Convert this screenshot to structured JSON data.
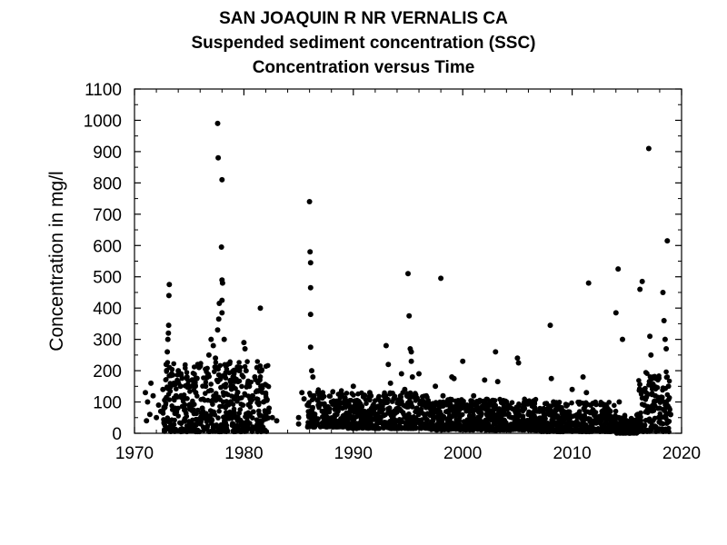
{
  "chart_data": {
    "type": "scatter",
    "title": "SAN JOAQUIN R NR VERNALIS CA",
    "subtitle": "Suspended sediment concentration (SSC)",
    "subtitle2": "Concentration versus Time",
    "xlabel": "",
    "ylabel": "Concentration in mg/l",
    "xlim": [
      1970,
      2020
    ],
    "ylim": [
      0,
      1100
    ],
    "xticks": [
      1970,
      1980,
      1990,
      2000,
      2010,
      2020
    ],
    "yticks": [
      0,
      100,
      200,
      300,
      400,
      500,
      600,
      700,
      800,
      900,
      1000,
      1100
    ],
    "grid": false,
    "marker_color": "#000000",
    "series": [
      {
        "points": [
          [
            1971.0,
            130
          ],
          [
            1971.1,
            40
          ],
          [
            1971.2,
            100
          ],
          [
            1971.4,
            60
          ],
          [
            1971.5,
            160
          ],
          [
            1971.7,
            120
          ],
          [
            1972.0,
            50
          ],
          [
            1972.2,
            90
          ],
          [
            1972.4,
            70
          ],
          [
            1972.6,
            140
          ],
          [
            1972.9,
            220
          ],
          [
            1973.0,
            260
          ],
          [
            1973.05,
            300
          ],
          [
            1973.1,
            320
          ],
          [
            1973.12,
            345
          ],
          [
            1973.15,
            440
          ],
          [
            1973.18,
            475
          ],
          [
            1973.2,
            210
          ],
          [
            1973.4,
            190
          ],
          [
            1973.6,
            160
          ],
          [
            1973.8,
            120
          ],
          [
            1974.0,
            200
          ],
          [
            1974.2,
            150
          ],
          [
            1974.5,
            110
          ],
          [
            1974.8,
            180
          ],
          [
            1975.0,
            90
          ],
          [
            1975.3,
            170
          ],
          [
            1975.6,
            130
          ],
          [
            1975.9,
            210
          ],
          [
            1976.2,
            80
          ],
          [
            1976.5,
            150
          ],
          [
            1976.8,
            250
          ],
          [
            1977.0,
            300
          ],
          [
            1977.2,
            280
          ],
          [
            1977.4,
            240
          ],
          [
            1977.5,
            210
          ],
          [
            1977.6,
            330
          ],
          [
            1977.7,
            365
          ],
          [
            1977.75,
            415
          ],
          [
            1977.6,
            990
          ],
          [
            1977.65,
            880
          ],
          [
            1978.0,
            810
          ],
          [
            1977.95,
            595
          ],
          [
            1978.0,
            490
          ],
          [
            1978.05,
            480
          ],
          [
            1978.0,
            425
          ],
          [
            1978.0,
            385
          ],
          [
            1978.2,
            300
          ],
          [
            1978.5,
            220
          ],
          [
            1978.8,
            150
          ],
          [
            1979.0,
            180
          ],
          [
            1979.3,
            120
          ],
          [
            1979.6,
            200
          ],
          [
            1979.9,
            90
          ],
          [
            1980.0,
            290
          ],
          [
            1980.1,
            270
          ],
          [
            1980.2,
            200
          ],
          [
            1980.5,
            150
          ],
          [
            1980.8,
            120
          ],
          [
            1981.0,
            180
          ],
          [
            1981.2,
            210
          ],
          [
            1981.5,
            400
          ],
          [
            1981.6,
            200
          ],
          [
            1981.8,
            100
          ],
          [
            1982.0,
            60
          ],
          [
            1982.3,
            80
          ],
          [
            1982.6,
            50
          ],
          [
            1983.0,
            40
          ],
          [
            1985.0,
            30
          ],
          [
            1985.0,
            50
          ],
          [
            1985.3,
            130
          ],
          [
            1985.5,
            110
          ],
          [
            1985.8,
            90
          ],
          [
            1986.0,
            740
          ],
          [
            1986.05,
            580
          ],
          [
            1986.1,
            545
          ],
          [
            1986.1,
            465
          ],
          [
            1986.1,
            380
          ],
          [
            1986.1,
            275
          ],
          [
            1986.2,
            200
          ],
          [
            1986.3,
            180
          ],
          [
            1986.4,
            120
          ],
          [
            1986.8,
            90
          ],
          [
            1987.2,
            130
          ],
          [
            1987.6,
            70
          ],
          [
            1988.0,
            100
          ],
          [
            1988.5,
            60
          ],
          [
            1989.0,
            80
          ],
          [
            1989.5,
            50
          ],
          [
            1990.0,
            150
          ],
          [
            1990.5,
            100
          ],
          [
            1991.0,
            60
          ],
          [
            1991.5,
            130
          ],
          [
            1992.0,
            80
          ],
          [
            1992.5,
            50
          ],
          [
            1992.8,
            120
          ],
          [
            1993.0,
            280
          ],
          [
            1993.2,
            220
          ],
          [
            1993.4,
            160
          ],
          [
            1993.7,
            110
          ],
          [
            1994.0,
            70
          ],
          [
            1994.4,
            190
          ],
          [
            1994.7,
            140
          ],
          [
            1995.0,
            510
          ],
          [
            1995.1,
            375
          ],
          [
            1995.2,
            270
          ],
          [
            1995.3,
            260
          ],
          [
            1995.3,
            230
          ],
          [
            1995.4,
            180
          ],
          [
            1995.6,
            120
          ],
          [
            1996.0,
            190
          ],
          [
            1996.5,
            60
          ],
          [
            1997.0,
            80
          ],
          [
            1997.5,
            150
          ],
          [
            1998.0,
            495
          ],
          [
            1998.2,
            120
          ],
          [
            1998.6,
            70
          ],
          [
            1999.0,
            180
          ],
          [
            1999.2,
            175
          ],
          [
            1999.6,
            60
          ],
          [
            2000.0,
            230
          ],
          [
            2000.4,
            90
          ],
          [
            2000.8,
            50
          ],
          [
            2001.0,
            120
          ],
          [
            2001.5,
            80
          ],
          [
            2002.0,
            170
          ],
          [
            2002.5,
            60
          ],
          [
            2003.0,
            260
          ],
          [
            2003.2,
            165
          ],
          [
            2003.6,
            70
          ],
          [
            2004.0,
            100
          ],
          [
            2004.5,
            50
          ],
          [
            2005.0,
            240
          ],
          [
            2005.1,
            225
          ],
          [
            2005.5,
            80
          ],
          [
            2006.0,
            60
          ],
          [
            2006.5,
            40
          ],
          [
            2007.0,
            70
          ],
          [
            2007.5,
            30
          ],
          [
            2008.0,
            345
          ],
          [
            2008.1,
            175
          ],
          [
            2008.3,
            100
          ],
          [
            2008.7,
            50
          ],
          [
            2009.0,
            80
          ],
          [
            2009.5,
            30
          ],
          [
            2010.0,
            140
          ],
          [
            2010.5,
            60
          ],
          [
            2011.0,
            180
          ],
          [
            2011.3,
            130
          ],
          [
            2011.5,
            480
          ],
          [
            2011.7,
            90
          ],
          [
            2012.0,
            60
          ],
          [
            2012.5,
            40
          ],
          [
            2013.0,
            80
          ],
          [
            2013.5,
            30
          ],
          [
            2014.0,
            385
          ],
          [
            2014.2,
            525
          ],
          [
            2014.3,
            100
          ],
          [
            2014.6,
            300
          ],
          [
            2015.0,
            40
          ],
          [
            2015.5,
            20
          ],
          [
            2016.0,
            60
          ],
          [
            2016.2,
            460
          ],
          [
            2016.4,
            485
          ],
          [
            2016.6,
            90
          ],
          [
            2017.0,
            910
          ],
          [
            2017.1,
            310
          ],
          [
            2017.2,
            250
          ],
          [
            2017.4,
            180
          ],
          [
            2017.6,
            120
          ],
          [
            2018.0,
            80
          ],
          [
            2018.3,
            450
          ],
          [
            2018.4,
            360
          ],
          [
            2018.5,
            300
          ],
          [
            2018.6,
            270
          ],
          [
            2018.7,
            615
          ],
          [
            2018.8,
            150
          ],
          [
            2019.0,
            60
          ]
        ],
        "dense_bands": [
          {
            "x0": 1972.6,
            "x1": 1982.3,
            "ymin": 5,
            "ymax": 230
          },
          {
            "x0": 1985.8,
            "x1": 1989.5,
            "ymin": 20,
            "ymax": 140
          },
          {
            "x0": 1989.5,
            "x1": 1997.0,
            "ymin": 15,
            "ymax": 130
          },
          {
            "x0": 1997.0,
            "x1": 2007.0,
            "ymin": 10,
            "ymax": 110
          },
          {
            "x0": 2007.0,
            "x1": 2014.0,
            "ymin": 5,
            "ymax": 100
          },
          {
            "x0": 2014.0,
            "x1": 2016.0,
            "ymin": 0,
            "ymax": 60
          },
          {
            "x0": 2016.0,
            "x1": 2019.0,
            "ymin": 5,
            "ymax": 200
          }
        ]
      }
    ]
  }
}
